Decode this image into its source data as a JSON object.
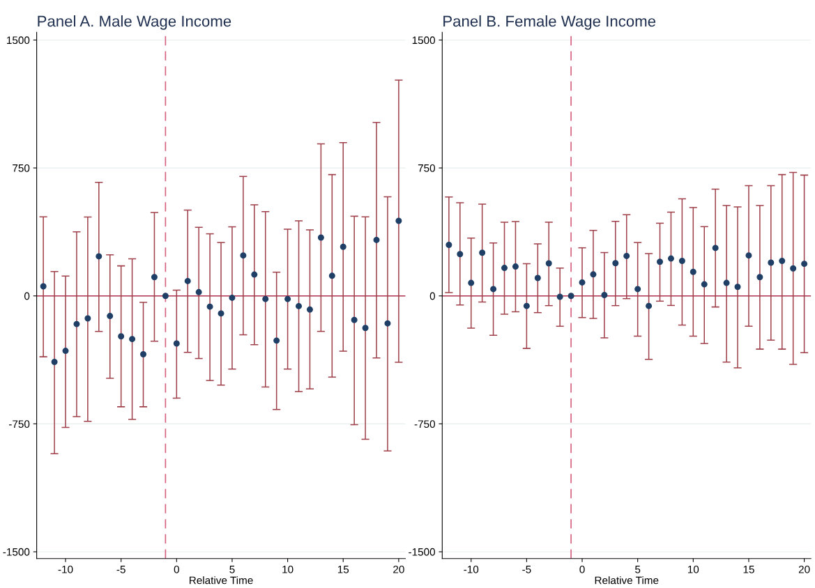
{
  "chart_data": [
    {
      "type": "scatter",
      "title": "Panel A. Male Wage Income",
      "xlabel": "Relative Time",
      "x": [
        -12,
        -11,
        -10,
        -9,
        -8,
        -7,
        -6,
        -5,
        -4,
        -3,
        -2,
        -1,
        0,
        1,
        2,
        3,
        4,
        5,
        6,
        7,
        8,
        9,
        10,
        11,
        12,
        13,
        14,
        15,
        16,
        17,
        18,
        19,
        20
      ],
      "series": [
        {
          "color": "#1f3f66",
          "values": [
            56,
            -387,
            -322,
            -165,
            -132,
            232,
            -118,
            -237,
            -253,
            -342,
            110,
            0,
            -279,
            87,
            22,
            -63,
            -103,
            -11,
            237,
            125,
            -18,
            -262,
            -18,
            -60,
            -80,
            342,
            118,
            288,
            -141,
            -188,
            328,
            -161,
            440
          ],
          "errors": [
            [
              -357,
              463
            ],
            [
              -925,
              143
            ],
            [
              -771,
              116
            ],
            [
              -708,
              376
            ],
            [
              -735,
              462
            ],
            [
              -208,
              666
            ],
            [
              -483,
              241
            ],
            [
              -650,
              176
            ],
            [
              -724,
              217
            ],
            [
              -650,
              -38
            ],
            [
              -266,
              489
            ],
            null,
            [
              -599,
              34
            ],
            [
              -331,
              503
            ],
            [
              -367,
              402
            ],
            [
              -496,
              364
            ],
            [
              -523,
              313
            ],
            [
              -429,
              405
            ],
            [
              -228,
              700
            ],
            [
              -286,
              534
            ],
            [
              -534,
              494
            ],
            [
              -666,
              139
            ],
            [
              -429,
              391
            ],
            [
              -561,
              440
            ],
            [
              -545,
              387
            ],
            [
              -208,
              891
            ],
            [
              -476,
              711
            ],
            [
              -324,
              898
            ],
            [
              -755,
              467
            ],
            [
              -840,
              463
            ],
            [
              -364,
              1017
            ],
            [
              -909,
              581
            ],
            [
              -389,
              1265
            ]
          ]
        }
      ],
      "xlim": [
        -12.6,
        20.6
      ],
      "xticks": [
        -10,
        -5,
        0,
        5,
        10,
        15,
        20
      ],
      "ylim": [
        -1540,
        1545
      ],
      "yticks": [
        -1500,
        -750,
        0,
        750,
        1500
      ],
      "grid": "y",
      "marker": "circle",
      "ref_lines": [
        {
          "axis": "y",
          "value": 0,
          "color": "#b03050",
          "line_style": "solid"
        },
        {
          "axis": "x",
          "value": -1,
          "color": "#d8607f",
          "line_style": "dashed"
        }
      ]
    },
    {
      "type": "scatter",
      "title": "Panel B. Female Wage Income",
      "xlabel": "Relative Time",
      "x": [
        -12,
        -11,
        -10,
        -9,
        -8,
        -7,
        -6,
        -5,
        -4,
        -3,
        -2,
        -1,
        0,
        1,
        2,
        3,
        4,
        5,
        6,
        7,
        8,
        9,
        10,
        11,
        12,
        13,
        14,
        15,
        16,
        17,
        18,
        19,
        20
      ],
      "series": [
        {
          "color": "#1f3f66",
          "values": [
            299,
            245,
            76,
            253,
            40,
            164,
            172,
            -59,
            105,
            191,
            -5,
            0,
            79,
            126,
            5,
            192,
            234,
            40,
            -59,
            200,
            219,
            205,
            141,
            68,
            281,
            76,
            53,
            237,
            110,
            195,
            205,
            161,
            188
          ],
          "errors": [
            [
              19,
              580
            ],
            [
              -53,
              546
            ],
            [
              -189,
              339
            ],
            [
              -36,
              538
            ],
            [
              -231,
              310
            ],
            [
              -107,
              432
            ],
            [
              -93,
              436
            ],
            [
              -308,
              189
            ],
            [
              -98,
              305
            ],
            [
              -57,
              432
            ],
            [
              -178,
              163
            ],
            null,
            [
              -127,
              282
            ],
            [
              -132,
              384
            ],
            [
              -246,
              254
            ],
            [
              -57,
              437
            ],
            [
              -16,
              476
            ],
            [
              -236,
              313
            ],
            [
              -372,
              248
            ],
            [
              -31,
              426
            ],
            [
              -56,
              491
            ],
            [
              -171,
              569
            ],
            [
              -236,
              518
            ],
            [
              -279,
              406
            ],
            [
              -65,
              626
            ],
            [
              -388,
              530
            ],
            [
              -422,
              522
            ],
            [
              -178,
              646
            ],
            [
              -312,
              530
            ],
            [
              -259,
              646
            ],
            [
              -312,
              711
            ],
            [
              -401,
              724
            ],
            [
              -333,
              708
            ]
          ]
        }
      ],
      "xlim": [
        -12.6,
        20.6
      ],
      "xticks": [
        -10,
        -5,
        0,
        5,
        10,
        15,
        20
      ],
      "ylim": [
        -1540,
        1545
      ],
      "yticks": [
        -1500,
        -750,
        0,
        750,
        1500
      ],
      "grid": "y",
      "marker": "circle",
      "ref_lines": [
        {
          "axis": "y",
          "value": 0,
          "color": "#b03050",
          "line_style": "solid"
        },
        {
          "axis": "x",
          "value": -1,
          "color": "#d8607f",
          "line_style": "dashed"
        }
      ]
    }
  ]
}
